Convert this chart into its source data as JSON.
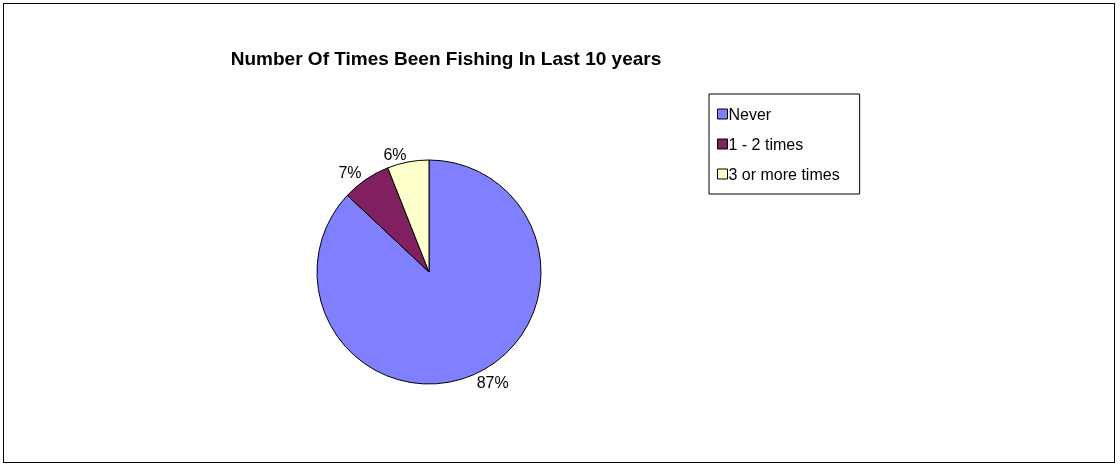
{
  "chart_data": {
    "type": "pie",
    "title": "Number Of Times Been Fishing In Last 10 years",
    "categories": [
      "Never",
      "1 - 2 times",
      "3 or more times"
    ],
    "values": [
      87,
      7,
      6
    ],
    "colors": [
      "#8080ff",
      "#802060",
      "#ffffcc"
    ],
    "value_labels": [
      "87%",
      "7%",
      "6%"
    ],
    "legend": "right"
  }
}
